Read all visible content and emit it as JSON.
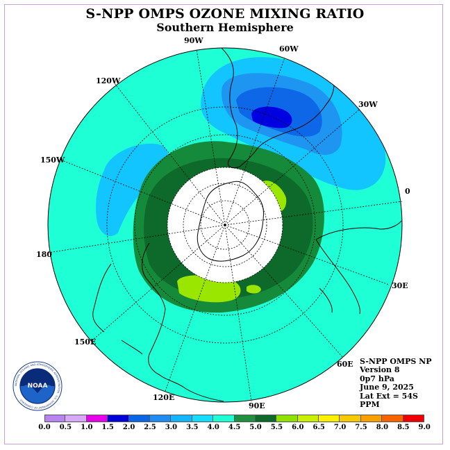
{
  "header": {
    "title": "S-NPP OMPS OZONE MIXING RATIO",
    "subtitle": "Southern Hemisphere"
  },
  "map": {
    "lon_labels": [
      {
        "id": "90w",
        "text": "90W"
      },
      {
        "id": "60w",
        "text": "60W"
      },
      {
        "id": "30w",
        "text": "30W"
      },
      {
        "id": "0",
        "text": "0"
      },
      {
        "id": "30e",
        "text": "30E"
      },
      {
        "id": "60e",
        "text": "60E"
      },
      {
        "id": "90e",
        "text": "90E"
      },
      {
        "id": "120e",
        "text": "120E"
      },
      {
        "id": "150e",
        "text": "150E"
      },
      {
        "id": "180",
        "text": "180"
      },
      {
        "id": "150w",
        "text": "150W"
      },
      {
        "id": "120w",
        "text": "120W"
      }
    ],
    "colors": {
      "background": "#1effd6",
      "ring_dark_green": "#0d6a2a",
      "ring_green": "#148a3a",
      "lime": "#9ae600",
      "light_blue": "#13c5ff",
      "mid_blue": "#1e95f0",
      "blue": "#0d67e6",
      "deep_blue": "#0000e0",
      "no_data": "#ffffff"
    }
  },
  "info": {
    "line1": "S-NPP OMPS NP",
    "line2": "Version 8",
    "line3": "0p7 hPa",
    "line4": "June 9, 2025",
    "line5": "Lat Ext = 54S",
    "line6": "PPM"
  },
  "logo": {
    "text": "NOAA",
    "ring_text": "NATIONAL OCEANIC AND ATMOSPHERIC ADMINISTRATION · U.S. DEPARTMENT OF COMMERCE"
  },
  "colorbar": {
    "ticks": [
      "0.0",
      "0.5",
      "1.0",
      "1.5",
      "2.0",
      "2.5",
      "3.0",
      "3.5",
      "4.0",
      "4.5",
      "5.0",
      "5.5",
      "6.0",
      "6.5",
      "7.0",
      "7.5",
      "8.0",
      "8.5",
      "9.0"
    ],
    "colors": [
      "#b884f0",
      "#d8a8f8",
      "#e800e8",
      "#0000d8",
      "#0a64e6",
      "#1e8cf0",
      "#14b4ff",
      "#14dcff",
      "#1effd6",
      "#1e9040",
      "#0d6a2a",
      "#90e000",
      "#c8f000",
      "#fff000",
      "#f8c800",
      "#f8a000",
      "#f86400",
      "#f00000",
      "#7a4a30"
    ]
  }
}
